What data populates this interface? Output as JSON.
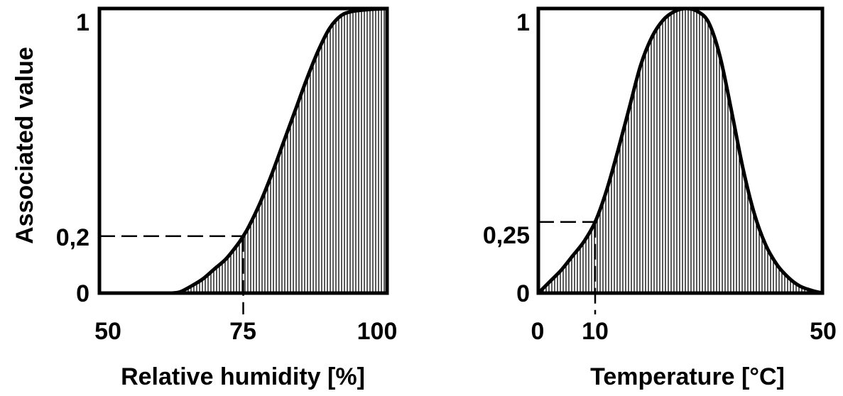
{
  "chart_data": [
    {
      "type": "area",
      "xlabel": "Relative humidity [%]",
      "ylabel": "Associated value",
      "xlim": [
        50,
        100
      ],
      "ylim": [
        0,
        1
      ],
      "x_ticks": [
        "50",
        "75",
        "100"
      ],
      "y_ticks": [
        "0",
        "0,2",
        "1"
      ],
      "fill": "vertical-hatch",
      "curve": {
        "x": [
          62.5,
          64,
          66,
          68,
          70,
          72,
          74,
          75,
          76,
          78,
          80,
          82,
          84,
          86,
          88,
          90,
          92,
          94,
          96,
          98,
          100
        ],
        "y": [
          0,
          0.004,
          0.025,
          0.05,
          0.085,
          0.12,
          0.17,
          0.2,
          0.235,
          0.32,
          0.42,
          0.53,
          0.64,
          0.75,
          0.85,
          0.93,
          0.975,
          0.99,
          0.995,
          0.998,
          1
        ]
      },
      "reference_lines": [
        {
          "x": 75,
          "y": 0.2,
          "style": "dashed"
        }
      ]
    },
    {
      "type": "area",
      "xlabel": "Temperature [°C]",
      "ylabel": "",
      "xlim": [
        0,
        50
      ],
      "ylim": [
        0,
        1
      ],
      "x_ticks": [
        "0",
        "10",
        "50"
      ],
      "y_ticks": [
        "0",
        "0,25",
        "1"
      ],
      "fill": "vertical-hatch",
      "curve": {
        "x": [
          0,
          2,
          4,
          6,
          8,
          10,
          12,
          14,
          16,
          18,
          20,
          22,
          24,
          26,
          28,
          30,
          32,
          34,
          36,
          38,
          40,
          42,
          44,
          46,
          48,
          50
        ],
        "y": [
          0,
          0.04,
          0.08,
          0.13,
          0.18,
          0.25,
          0.36,
          0.5,
          0.65,
          0.8,
          0.9,
          0.96,
          0.99,
          1.0,
          0.99,
          0.95,
          0.83,
          0.64,
          0.44,
          0.28,
          0.17,
          0.1,
          0.055,
          0.025,
          0.01,
          0
        ]
      },
      "reference_lines": [
        {
          "x": 10,
          "y": 0.25,
          "style": "dashed"
        }
      ]
    }
  ]
}
